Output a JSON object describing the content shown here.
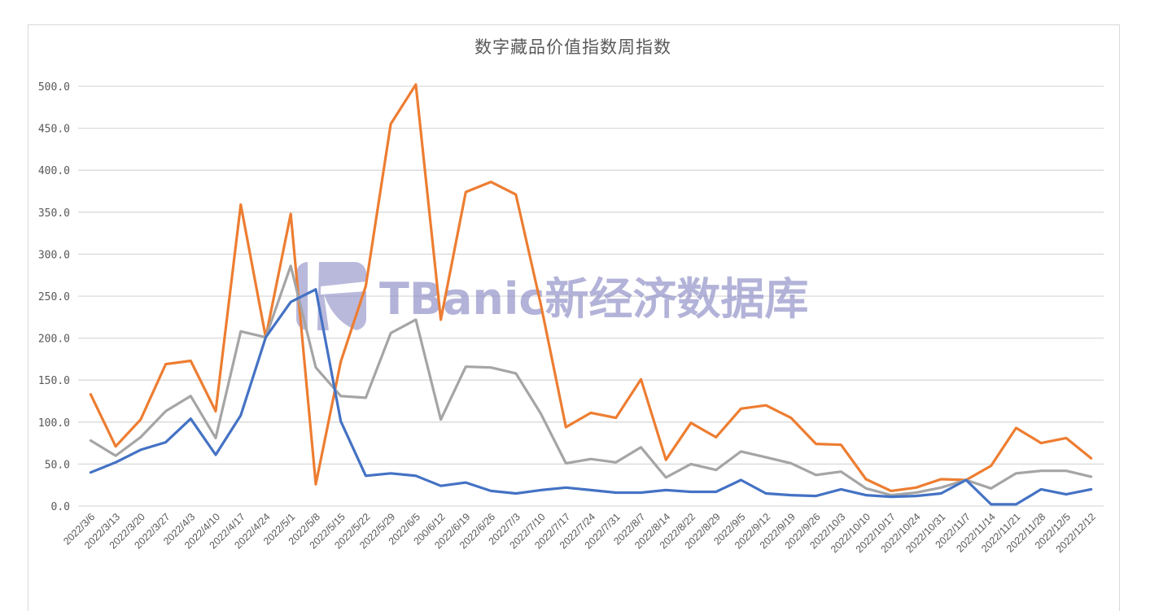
{
  "chart_data": {
    "type": "line",
    "title": "数字藏品价值指数周指数",
    "xlabel": "",
    "ylabel": "",
    "ylim": [
      0,
      500
    ],
    "yticks": [
      "0.0",
      "50.0",
      "100.0",
      "150.0",
      "200.0",
      "250.0",
      "300.0",
      "350.0",
      "400.0",
      "450.0",
      "500.0"
    ],
    "grid": true,
    "legend": "none",
    "categories": [
      "2022/3/6",
      "2022/3/13",
      "2022/3/20",
      "2022/3/27",
      "2022/4/3",
      "2022/4/10",
      "2022/4/17",
      "2022/4/24",
      "2022/5/1",
      "2022/5/8",
      "2022/5/15",
      "2022/5/22",
      "2022/5/29",
      "2022/6/5",
      "200/6/12",
      "2022/6/19",
      "2022/6/26",
      "2022/7/3",
      "2022/7/10",
      "2022/7/17",
      "2022/7/24",
      "2022/7/31",
      "2022/8/7",
      "2022/8/14",
      "2022/8/22",
      "2022/8/29",
      "2022/9/5",
      "2022/9/12",
      "2022/9/19",
      "2022/9/26",
      "2022/10/3",
      "2022/10/10",
      "2022/10/17",
      "2022/10/24",
      "2022/10/31",
      "2022/11/7",
      "2022/11/14",
      "2022/11/21",
      "2022/11/28",
      "2022/12/5",
      "2022/12/12"
    ],
    "series": [
      {
        "name": "orange",
        "color": "#ed7d31",
        "values": [
          133,
          71,
          103,
          169,
          173,
          113,
          359,
          201,
          348,
          26,
          172,
          262,
          455,
          502,
          222,
          374,
          386,
          371,
          240,
          94,
          111,
          105,
          151,
          55,
          99,
          82,
          116,
          120,
          105,
          74,
          73,
          32,
          18,
          22,
          32,
          31,
          48,
          93,
          75,
          81,
          57
        ]
      },
      {
        "name": "gray",
        "color": "#a5a5a5",
        "values": [
          78,
          60,
          82,
          113,
          131,
          81,
          208,
          201,
          286,
          165,
          131,
          129,
          206,
          222,
          103,
          166,
          165,
          158,
          110,
          51,
          56,
          52,
          70,
          34,
          50,
          43,
          65,
          58,
          51,
          37,
          41,
          21,
          13,
          16,
          22,
          31,
          21,
          39,
          42,
          42,
          35
        ]
      },
      {
        "name": "blue",
        "color": "#4472c4",
        "values": [
          40,
          52,
          67,
          76,
          104,
          61,
          108,
          201,
          243,
          258,
          101,
          36,
          39,
          36,
          24,
          28,
          18,
          15,
          19,
          22,
          19,
          16,
          16,
          19,
          17,
          17,
          31,
          15,
          13,
          12,
          20,
          13,
          11,
          12,
          15,
          31,
          2,
          2,
          20,
          14,
          20
        ]
      }
    ]
  },
  "watermark": {
    "text": "TBanic新经济数据库"
  }
}
